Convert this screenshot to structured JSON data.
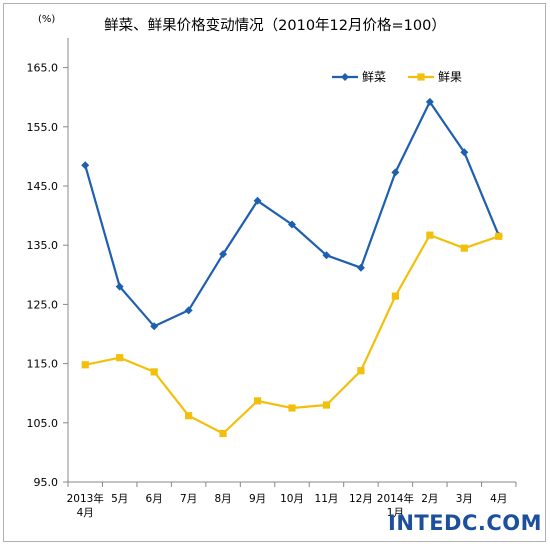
{
  "chart_data": {
    "type": "line",
    "title": "鲜菜、鲜果价格变动情况（2010年12月价格=100）",
    "unit_label": "(%)",
    "categories": [
      [
        "2013年",
        "4月"
      ],
      [
        "5月"
      ],
      [
        "6月"
      ],
      [
        "7月"
      ],
      [
        "8月"
      ],
      [
        "9月"
      ],
      [
        "10月"
      ],
      [
        "11月"
      ],
      [
        "12月"
      ],
      [
        "2014年",
        "1月"
      ],
      [
        "2月"
      ],
      [
        "3月"
      ],
      [
        "4月"
      ]
    ],
    "series": [
      {
        "name": "鲜菜",
        "color": "#1f5fb0",
        "marker": "diamond",
        "values": [
          148.5,
          128.0,
          121.3,
          124.0,
          133.5,
          142.5,
          138.5,
          133.3,
          131.2,
          147.3,
          159.2,
          150.7,
          136.6
        ]
      },
      {
        "name": "鲜果",
        "color": "#f2c00c",
        "marker": "square",
        "values": [
          114.8,
          116.0,
          113.6,
          106.2,
          103.2,
          108.7,
          107.5,
          108.0,
          113.8,
          126.4,
          136.7,
          134.5,
          136.5
        ]
      }
    ],
    "y_ticks": [
      "95.0",
      "105.0",
      "115.0",
      "125.0",
      "135.0",
      "145.0",
      "155.0",
      "165.0"
    ],
    "ylim": [
      95,
      170
    ],
    "grid": false,
    "legend_position": "top-right"
  },
  "watermark": "INTEDC.COM"
}
